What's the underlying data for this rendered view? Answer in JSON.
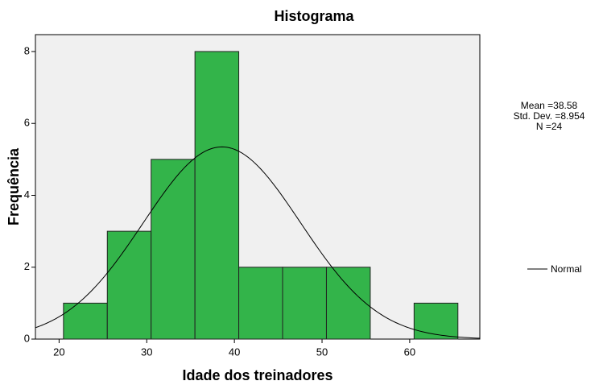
{
  "chart_data": {
    "type": "histogram",
    "title": "Histograma",
    "x_label": "Idade dos treinadores",
    "y_label": "Frequência",
    "bins": [
      20.5,
      25.5,
      30.5,
      35.5,
      40.5,
      45.5,
      50.5,
      55.5,
      60.5,
      65.5
    ],
    "values": [
      1,
      3,
      5,
      8,
      2,
      2,
      2,
      0,
      1
    ],
    "color": "#33b44a",
    "xlim": [
      17.3,
      68
    ],
    "xticks": [
      20,
      30,
      40,
      50,
      60
    ],
    "ylim": [
      0,
      8.47
    ],
    "yticks": [
      0,
      2,
      4,
      6,
      8
    ],
    "stats": {
      "mean": {
        "value": 38.58,
        "label": "Mean =38.58"
      },
      "sd": {
        "value": 8.954,
        "label": "Std. Dev. =8.954"
      },
      "n": {
        "value": 24,
        "label": "N =24"
      }
    },
    "legend": "Normal"
  }
}
